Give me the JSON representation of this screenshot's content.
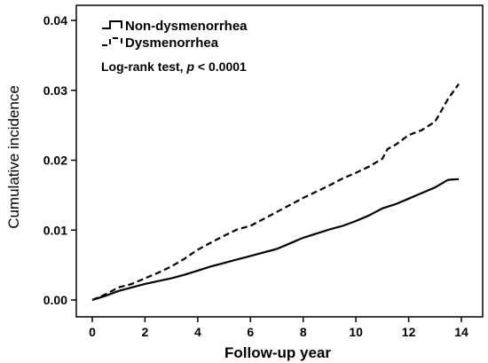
{
  "chart_data": {
    "type": "line",
    "xlabel": "Follow-up year",
    "ylabel": "Cumulative incidence",
    "xlim": [
      0,
      14
    ],
    "ylim": [
      0,
      0.04
    ],
    "x_ticks": [
      0,
      2,
      4,
      6,
      8,
      10,
      12,
      14
    ],
    "x_tick_labels": [
      "0",
      "2",
      "4",
      "6",
      "8",
      "10",
      "12",
      "14"
    ],
    "y_ticks": [
      0,
      0.01,
      0.02,
      0.03,
      0.04
    ],
    "y_tick_labels": [
      "0.00",
      "0.01",
      "0.02",
      "0.03",
      "0.04"
    ],
    "grid": false,
    "legend_position": "top-left",
    "annotation": {
      "prefix": "Log-rank test, ",
      "p_symbol": "p",
      "suffix": " < 0.0001"
    },
    "series": [
      {
        "name": "Non-dysmenorrhea",
        "line_style": "solid",
        "color": "#000000",
        "x": [
          0,
          0.5,
          1,
          1.5,
          2,
          2.5,
          3,
          3.5,
          4,
          4.5,
          5,
          5.5,
          6,
          6.5,
          7,
          7.5,
          8,
          8.5,
          9,
          9.5,
          10,
          10.5,
          11,
          11.5,
          12,
          12.5,
          13,
          13.5,
          13.9
        ],
        "y": [
          0,
          0.0006,
          0.0013,
          0.0018,
          0.0023,
          0.0027,
          0.0031,
          0.0036,
          0.0042,
          0.0048,
          0.0053,
          0.0058,
          0.0063,
          0.0068,
          0.0073,
          0.0081,
          0.0089,
          0.0095,
          0.0101,
          0.0106,
          0.0113,
          0.0121,
          0.0131,
          0.0137,
          0.0145,
          0.0153,
          0.0161,
          0.0172,
          0.0173
        ]
      },
      {
        "name": "Dysmenorrhea",
        "line_style": "dashed",
        "color": "#000000",
        "x": [
          0,
          0.5,
          1,
          1.5,
          2,
          2.5,
          3,
          3.5,
          4,
          4.5,
          5,
          5.5,
          6,
          6.5,
          7,
          7.5,
          8,
          8.5,
          9,
          9.5,
          10,
          10.5,
          11,
          11.2,
          11.5,
          12,
          12.5,
          13,
          13.2,
          13.5,
          13.9
        ],
        "y": [
          0,
          0.0008,
          0.0018,
          0.0023,
          0.0031,
          0.0039,
          0.0048,
          0.0059,
          0.0072,
          0.0082,
          0.0092,
          0.0101,
          0.0106,
          0.0116,
          0.0126,
          0.0136,
          0.0146,
          0.0155,
          0.0164,
          0.0174,
          0.0182,
          0.0191,
          0.0202,
          0.0216,
          0.0222,
          0.0236,
          0.0243,
          0.0255,
          0.0268,
          0.0288,
          0.0309
        ]
      }
    ]
  }
}
